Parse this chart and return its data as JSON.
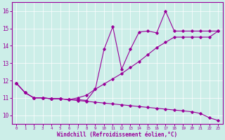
{
  "xlabel": "Windchill (Refroidissement éolien,°C)",
  "background_color": "#cceee8",
  "line_color": "#990099",
  "xlim": [
    -0.5,
    23.5
  ],
  "ylim": [
    9.5,
    16.5
  ],
  "yticks": [
    10,
    11,
    12,
    13,
    14,
    15,
    16
  ],
  "xticks": [
    0,
    1,
    2,
    3,
    4,
    5,
    6,
    7,
    8,
    9,
    10,
    11,
    12,
    13,
    14,
    15,
    16,
    17,
    18,
    19,
    20,
    21,
    22,
    23
  ],
  "line_top_x": [
    0,
    1,
    2,
    3,
    4,
    5,
    6,
    7,
    8,
    9,
    10,
    11,
    12,
    13,
    14,
    15,
    16,
    17,
    18,
    19,
    20,
    21,
    22,
    23
  ],
  "line_top_y": [
    11.85,
    11.3,
    11.0,
    11.0,
    10.95,
    10.95,
    10.9,
    10.9,
    10.85,
    11.5,
    13.8,
    15.1,
    12.65,
    13.8,
    14.8,
    14.85,
    14.75,
    16.0,
    14.85,
    14.85,
    14.85,
    14.85,
    14.85,
    14.85
  ],
  "line_mid_x": [
    0,
    1,
    2,
    3,
    4,
    5,
    6,
    7,
    8,
    9,
    10,
    11,
    12,
    13,
    14,
    15,
    16,
    17,
    18,
    19,
    20,
    21,
    22,
    23
  ],
  "line_mid_y": [
    11.85,
    11.3,
    11.0,
    11.0,
    10.95,
    10.95,
    10.9,
    11.0,
    11.15,
    11.5,
    11.8,
    12.1,
    12.4,
    12.75,
    13.1,
    13.5,
    13.9,
    14.2,
    14.5,
    14.5,
    14.5,
    14.5,
    14.5,
    14.85
  ],
  "line_bot_x": [
    0,
    1,
    2,
    3,
    4,
    5,
    6,
    7,
    8,
    9,
    10,
    11,
    12,
    13,
    14,
    15,
    16,
    17,
    18,
    19,
    20,
    21,
    22,
    23
  ],
  "line_bot_y": [
    11.85,
    11.3,
    11.0,
    11.0,
    10.95,
    10.95,
    10.9,
    10.85,
    10.8,
    10.75,
    10.7,
    10.65,
    10.6,
    10.55,
    10.5,
    10.45,
    10.4,
    10.35,
    10.3,
    10.25,
    10.2,
    10.1,
    9.85,
    9.7
  ]
}
